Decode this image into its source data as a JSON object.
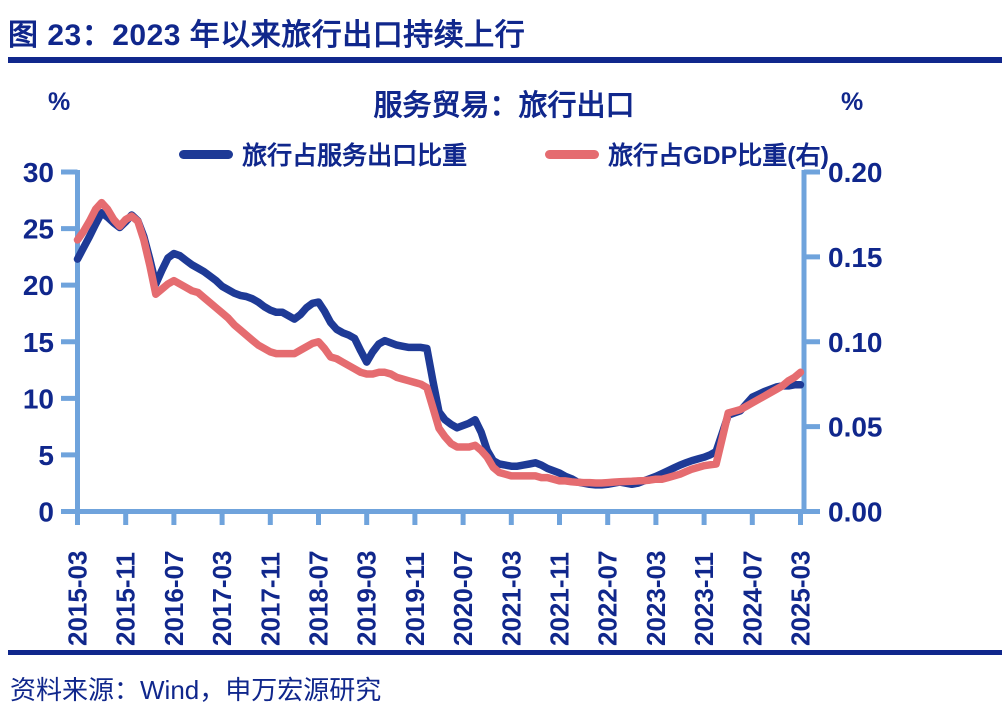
{
  "header": {
    "title": "图 23：2023 年以来旅行出口持续上行"
  },
  "footer": {
    "source": "资料来源：Wind，申万宏源研究"
  },
  "theme": {
    "navy_text": "#10278C",
    "axis_color": "#6FA3DC",
    "background": "#ffffff"
  },
  "chart_data": {
    "type": "line",
    "title": "服务贸易：旅行出口",
    "unit_left": "%",
    "unit_right": "%",
    "x_start": "2015-03",
    "x_interval_months": 1,
    "x_label_every_n_months": 8,
    "x_tick_labels": [
      "2015-03",
      "2015-11",
      "2016-07",
      "2017-03",
      "2017-11",
      "2018-07",
      "2019-03",
      "2019-11",
      "2020-07",
      "2021-03",
      "2021-11",
      "2022-07",
      "2023-03",
      "2023-11",
      "2024-07",
      "2025-03"
    ],
    "left_axis": {
      "min": 0,
      "max": 30,
      "tick_labels": [
        "0",
        "5",
        "10",
        "15",
        "20",
        "25",
        "30"
      ]
    },
    "right_axis": {
      "min": 0,
      "max": 0.2,
      "tick_labels": [
        "0.00",
        "0.05",
        "0.10",
        "0.15",
        "0.20"
      ]
    },
    "legend_position": "top",
    "grid": false,
    "series": [
      {
        "name": "旅行占服务出口比重",
        "axis": "left",
        "color": "#1E3A96",
        "values": [
          22.3,
          23.3,
          24.3,
          25.4,
          26.4,
          26.0,
          25.5,
          25.1,
          25.6,
          26.2,
          25.7,
          24.3,
          22.3,
          20.1,
          21.3,
          22.4,
          22.8,
          22.6,
          22.2,
          21.8,
          21.5,
          21.2,
          20.8,
          20.4,
          19.9,
          19.6,
          19.3,
          19.1,
          19.0,
          18.8,
          18.5,
          18.1,
          17.8,
          17.6,
          17.6,
          17.3,
          17.0,
          17.4,
          18.0,
          18.4,
          18.5,
          17.7,
          16.7,
          16.1,
          15.8,
          15.6,
          15.3,
          14.2,
          13.2,
          14.1,
          14.8,
          15.1,
          14.9,
          14.7,
          14.6,
          14.5,
          14.5,
          14.5,
          14.4,
          11.5,
          8.8,
          8.1,
          7.7,
          7.4,
          7.6,
          7.8,
          8.1,
          7.0,
          5.4,
          4.5,
          4.2,
          4.1,
          4.0,
          4.0,
          4.1,
          4.2,
          4.3,
          4.1,
          3.8,
          3.6,
          3.4,
          3.1,
          2.9,
          2.6,
          2.5,
          2.4,
          2.35,
          2.35,
          2.4,
          2.5,
          2.6,
          2.5,
          2.4,
          2.5,
          2.7,
          2.9,
          3.1,
          3.35,
          3.6,
          3.85,
          4.1,
          4.3,
          4.5,
          4.65,
          4.8,
          5.0,
          5.3,
          6.9,
          8.5,
          8.7,
          8.9,
          9.5,
          10.1,
          10.35,
          10.6,
          10.8,
          11.0,
          11.1,
          11.1,
          11.2,
          11.2
        ]
      },
      {
        "name": "旅行占GDP比重(右)",
        "axis": "right",
        "color": "#E56C70",
        "values": [
          0.16,
          0.165,
          0.171,
          0.178,
          0.182,
          0.178,
          0.172,
          0.168,
          0.172,
          0.174,
          0.171,
          0.16,
          0.145,
          0.128,
          0.131,
          0.134,
          0.136,
          0.134,
          0.132,
          0.13,
          0.129,
          0.126,
          0.123,
          0.12,
          0.117,
          0.114,
          0.11,
          0.107,
          0.104,
          0.101,
          0.098,
          0.096,
          0.094,
          0.093,
          0.093,
          0.093,
          0.093,
          0.095,
          0.097,
          0.099,
          0.1,
          0.096,
          0.091,
          0.09,
          0.088,
          0.086,
          0.084,
          0.082,
          0.081,
          0.081,
          0.082,
          0.082,
          0.081,
          0.079,
          0.078,
          0.077,
          0.076,
          0.075,
          0.073,
          0.061,
          0.049,
          0.044,
          0.04,
          0.038,
          0.038,
          0.038,
          0.039,
          0.036,
          0.032,
          0.026,
          0.023,
          0.022,
          0.021,
          0.021,
          0.021,
          0.021,
          0.021,
          0.02,
          0.02,
          0.019,
          0.018,
          0.018,
          0.0175,
          0.0172,
          0.017,
          0.017,
          0.0168,
          0.0168,
          0.017,
          0.0173,
          0.0175,
          0.0177,
          0.0178,
          0.018,
          0.0182,
          0.0185,
          0.019,
          0.019,
          0.02,
          0.021,
          0.022,
          0.0235,
          0.025,
          0.026,
          0.027,
          0.0275,
          0.028,
          0.043,
          0.058,
          0.059,
          0.06,
          0.062,
          0.064,
          0.066,
          0.068,
          0.07,
          0.072,
          0.074,
          0.077,
          0.079,
          0.082
        ]
      }
    ]
  }
}
